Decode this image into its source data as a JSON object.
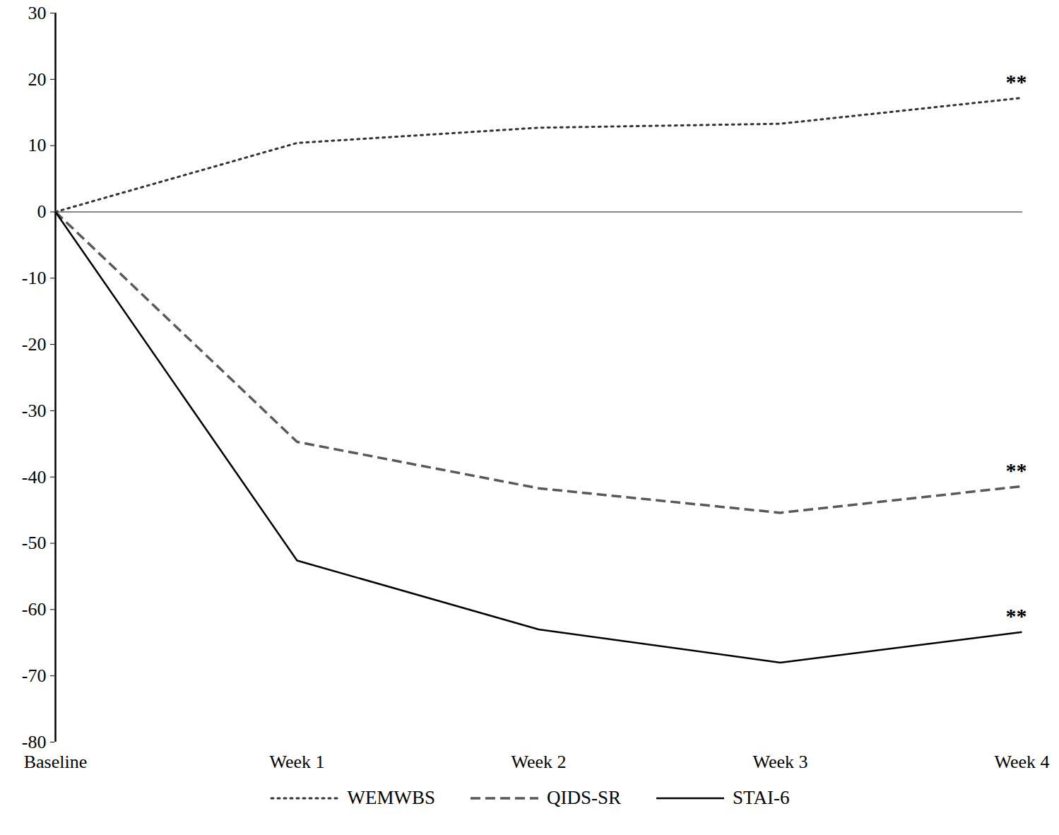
{
  "chart_data": {
    "type": "line",
    "categories": [
      "Baseline",
      "Week 1",
      "Week 2",
      "Week 3",
      "Week 4"
    ],
    "series": [
      {
        "name": "WEMWBS",
        "color": "#333333",
        "line_style": "dotted",
        "values": [
          0,
          10.4,
          12.7,
          13.3,
          17.2
        ]
      },
      {
        "name": "QIDS-SR",
        "color": "#595959",
        "line_style": "dashed",
        "values": [
          0,
          -34.7,
          -41.7,
          -45.4,
          -41.4
        ]
      },
      {
        "name": "STAI-6",
        "color": "#000000",
        "line_style": "solid",
        "values": [
          0,
          -52.6,
          -63.0,
          -68.0,
          -63.4
        ]
      }
    ],
    "ylim": [
      -80,
      30
    ],
    "yticks": [
      -80,
      -70,
      -60,
      -50,
      -40,
      -30,
      -20,
      -10,
      0,
      10,
      20,
      30
    ],
    "grid": false,
    "legend": "bottom",
    "annotations": [
      {
        "text": "**",
        "series": "WEMWBS"
      },
      {
        "text": "**",
        "series": "QIDS-SR"
      },
      {
        "text": "**",
        "series": "STAI-6"
      }
    ]
  }
}
